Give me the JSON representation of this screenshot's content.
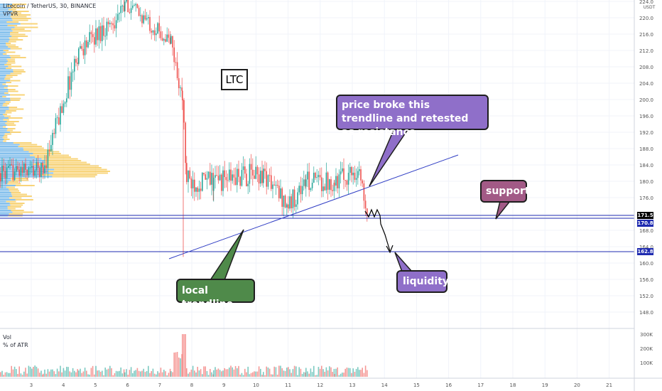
{
  "header": {
    "symbol_line": "Litecoin / TetherUS, 30, BINANCE",
    "indicator": "VPVR"
  },
  "chart_label": "LTC",
  "annotations": {
    "resistance_text": "price broke this trendline and retested as resistance",
    "support_text": "support",
    "local_trendline_text": "local trendline",
    "liquidity_text": "liquidity"
  },
  "price_tags": {
    "current": "171.5",
    "support_level": "170.8",
    "liquidity_level": "162.8"
  },
  "volume_pane": {
    "title": "Vol",
    "subtitle": "% of ATR",
    "axis_ticks": [
      "300K",
      "200K",
      "100K"
    ]
  },
  "price_axis": {
    "unit": "USDT",
    "ticks": [
      "224.0",
      "220.0",
      "216.0",
      "212.0",
      "208.0",
      "204.0",
      "200.0",
      "196.0",
      "192.0",
      "188.0",
      "184.0",
      "180.0",
      "176.0",
      "172.0",
      "168.0",
      "164.0",
      "160.0",
      "156.0",
      "152.0",
      "148.0"
    ]
  },
  "time_axis": {
    "ticks": [
      "3",
      "4",
      "5",
      "6",
      "7",
      "8",
      "9",
      "10",
      "11",
      "12",
      "13",
      "14",
      "15",
      "16",
      "17",
      "18",
      "19",
      "20",
      "21"
    ]
  },
  "colors": {
    "up": "#26a69a",
    "down": "#ef5350",
    "line_blue": "#1f2bb0",
    "vpvr_blue": "#5aa9e6",
    "vpvr_yellow": "#f5c242"
  },
  "chart_data": {
    "type": "candlestick",
    "y_range": [
      140,
      225
    ],
    "levels": [
      171.5,
      170.8,
      162.8
    ]
  }
}
